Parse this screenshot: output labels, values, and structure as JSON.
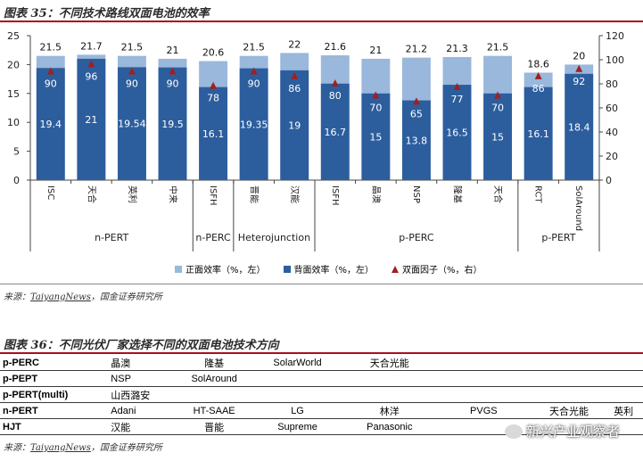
{
  "figure1": {
    "title": "图表 35：不同技术路线双面电池的效率",
    "source_label": "来源：",
    "source_link": "TaiyangNews",
    "source_rest": "，国金证券研究所"
  },
  "figure2": {
    "title": "图表 36：不同光伏厂家选择不同的双面电池技术方向",
    "source_label": "来源：",
    "source_link": "TaiyangNews",
    "source_rest": "，国金证券研究所",
    "rows": [
      {
        "label": "p-PERC",
        "items": [
          "晶澳",
          "隆基",
          "SolarWorld",
          "天合光能",
          "",
          "",
          ""
        ]
      },
      {
        "label": "p-PEPT",
        "items": [
          "NSP",
          "SolAround",
          "",
          "",
          "",
          "",
          ""
        ]
      },
      {
        "label": "p-PERT(multi)",
        "items": [
          "山西潞安",
          "",
          "",
          "",
          "",
          "",
          ""
        ]
      },
      {
        "label": "n-PERT",
        "items": [
          "Adani",
          "HT-SAAE",
          "LG",
          "林洋",
          "PVGS",
          "天合光能",
          "英利"
        ]
      },
      {
        "label": "HJT",
        "items": [
          "汉能",
          "晋能",
          "Supreme",
          "Panasonic",
          "",
          "",
          ""
        ]
      }
    ]
  },
  "watermark": "新兴产业观察者",
  "chart_data": {
    "type": "bar",
    "stacked": true,
    "title": "不同技术路线双面电池的效率",
    "categories": [
      "ISC",
      "天合",
      "英利",
      "中来",
      "ISFH",
      "晋能",
      "汉能",
      "ISFH",
      "晶澳",
      "NSP",
      "隆基",
      "天合",
      "RCT",
      "SolAround"
    ],
    "groups": [
      {
        "name": "n-PERT",
        "start": 0,
        "end": 3
      },
      {
        "name": "n-PERC",
        "start": 4,
        "end": 4
      },
      {
        "name": "Heterojunction",
        "start": 5,
        "end": 6
      },
      {
        "name": "p-PERC",
        "start": 7,
        "end": 11
      },
      {
        "name": "p-PERT",
        "start": 12,
        "end": 13
      }
    ],
    "series": [
      {
        "name": "正面效率（%，左）",
        "color": "#9ab7dc",
        "values": [
          21.5,
          21.7,
          21.5,
          21,
          20.6,
          21.5,
          22,
          21.6,
          21,
          21.2,
          21.3,
          21.5,
          18.6,
          20
        ]
      },
      {
        "name": "背面效率（%，左）",
        "color": "#2c5e9e",
        "values": [
          19.4,
          21,
          19.54,
          19.5,
          16.1,
          19.35,
          19,
          16.7,
          15,
          13.8,
          16.5,
          15,
          16.1,
          18.4
        ]
      },
      {
        "name": "双面因子（%，右）",
        "color": "#a02020",
        "axis": "right",
        "values": [
          90,
          96,
          90,
          90,
          78,
          90,
          86,
          80,
          70,
          65,
          77,
          70,
          86,
          92
        ]
      }
    ],
    "ylim_left": [
      0,
      25
    ],
    "yticks_left": [
      0,
      5,
      10,
      15,
      20,
      25
    ],
    "ylim_right": [
      0,
      120
    ],
    "yticks_right": [
      0,
      20,
      40,
      60,
      80,
      100,
      120
    ],
    "xlabel": "",
    "ylabel": "",
    "legend": "bottom"
  }
}
